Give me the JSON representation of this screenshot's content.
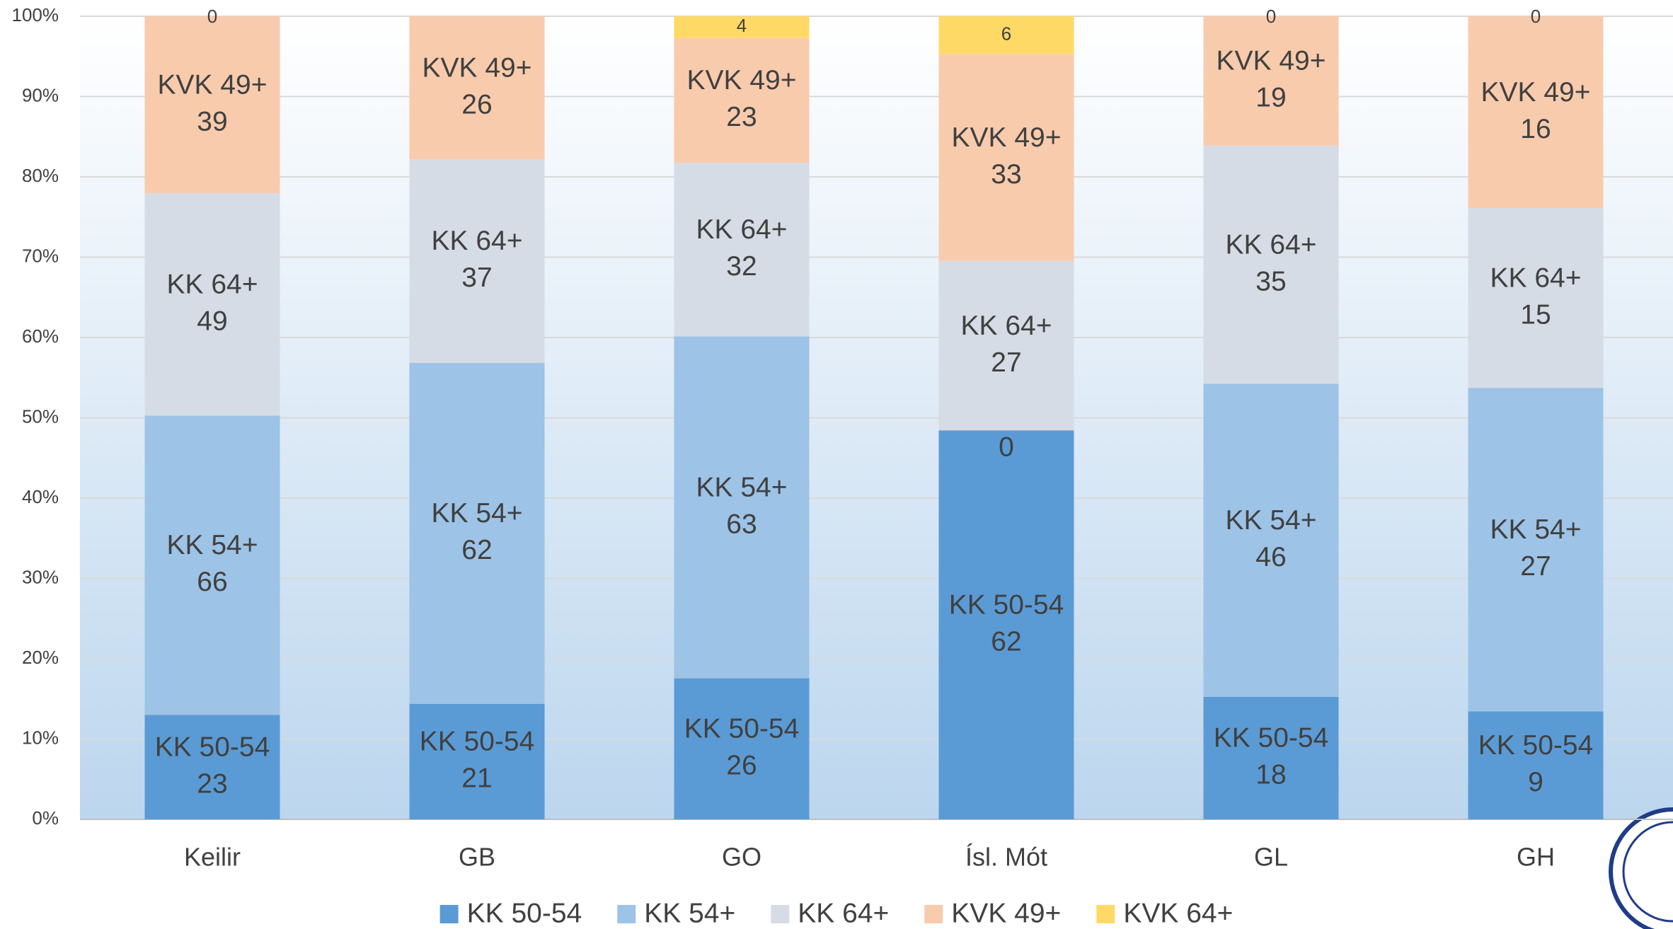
{
  "chart_data": {
    "type": "bar",
    "stacking": "percent",
    "categories": [
      "Keilir",
      "GB",
      "GO",
      "Ísl. Mót",
      "GL",
      "GH"
    ],
    "series": [
      {
        "name": "KK 50-54",
        "color": "#5b9bd5",
        "show_name_in_label": true,
        "values": [
          23,
          21,
          26,
          62,
          18,
          9
        ]
      },
      {
        "name": "KK 54+",
        "color": "#9dc3e6",
        "show_name_in_label": true,
        "values": [
          66,
          62,
          63,
          0,
          46,
          27
        ]
      },
      {
        "name": "KK 64+",
        "color": "#d6dce5",
        "show_name_in_label": true,
        "values": [
          49,
          37,
          32,
          27,
          35,
          15
        ]
      },
      {
        "name": "KVK 49+",
        "color": "#f8cbad",
        "show_name_in_label": true,
        "values": [
          39,
          26,
          23,
          33,
          19,
          16
        ]
      },
      {
        "name": "KVK 64+",
        "color": "#ffd966",
        "show_name_in_label": false,
        "values": [
          0,
          null,
          4,
          6,
          0,
          0
        ]
      }
    ],
    "ylim": [
      0,
      100
    ],
    "yticks": [
      {
        "value": 0,
        "label": "0%"
      },
      {
        "value": 10,
        "label": "10%"
      },
      {
        "value": 20,
        "label": "20%"
      },
      {
        "value": 30,
        "label": "30%"
      },
      {
        "value": 40,
        "label": "40%"
      },
      {
        "value": 50,
        "label": "50%"
      },
      {
        "value": 60,
        "label": "60%"
      },
      {
        "value": 70,
        "label": "70%"
      },
      {
        "value": 80,
        "label": "80%"
      },
      {
        "value": 90,
        "label": "90%"
      },
      {
        "value": 100,
        "label": "100%"
      }
    ],
    "grid": true,
    "legend": "bottom"
  }
}
